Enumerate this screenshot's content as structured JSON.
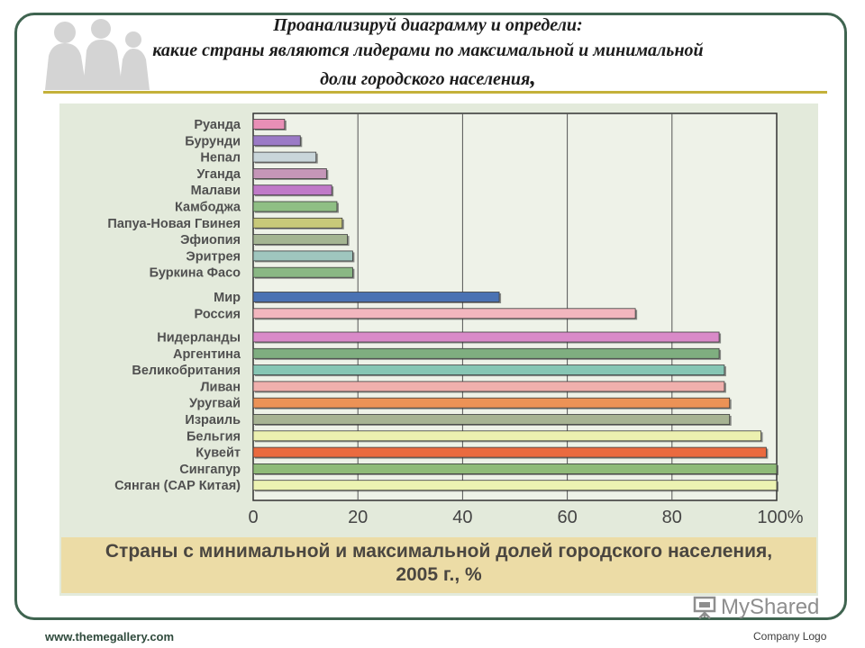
{
  "slide": {
    "title_line1": "Проанализируй диаграмму и определи:",
    "title_line2": "какие страны являются лидерами по максимальной и минимальной",
    "title_line3": "доли городского населения",
    "title_comma": ",",
    "footer_url": "www.themegallery.com",
    "company_logo": "Company Logo",
    "watermark": "MyShared"
  },
  "chart_data": {
    "type": "bar",
    "orientation": "horizontal",
    "title": "Страны с минимальной и максимальной долей городского населения, 2005 г., %",
    "caption_line1": "Страны с минимальной и максимальной долей городского населения,",
    "caption_line2": "2005 г., %",
    "xlim": [
      0,
      100
    ],
    "ticks": [
      "0",
      "20",
      "40",
      "60",
      "80",
      "100%"
    ],
    "tick_values": [
      0,
      20,
      40,
      60,
      80,
      100
    ],
    "grid": true,
    "bars": [
      {
        "label": "Руанда",
        "value": 6,
        "color": "#e88fb6",
        "group": 0
      },
      {
        "label": "Бурунди",
        "value": 9,
        "color": "#9b7ac6",
        "group": 0
      },
      {
        "label": "Непал",
        "value": 12,
        "color": "#c9d6da",
        "group": 0
      },
      {
        "label": "Уганда",
        "value": 14,
        "color": "#c596b8",
        "group": 0
      },
      {
        "label": "Малави",
        "value": 15,
        "color": "#c07ac8",
        "group": 0
      },
      {
        "label": "Камбоджа",
        "value": 16,
        "color": "#8fbf84",
        "group": 0
      },
      {
        "label": "Папуа-Новая Гвинея",
        "value": 17,
        "color": "#c8c979",
        "group": 0
      },
      {
        "label": "Эфиопия",
        "value": 18,
        "color": "#a4b592",
        "group": 0
      },
      {
        "label": "Эритрея",
        "value": 19,
        "color": "#9fc6be",
        "group": 0
      },
      {
        "label": "Буркина Фасо",
        "value": 19,
        "color": "#8ab884",
        "group": 0
      },
      {
        "label": "Мир",
        "value": 47,
        "color": "#4a72b3",
        "group": 1
      },
      {
        "label": "Россия",
        "value": 73,
        "color": "#f2b6be",
        "group": 1
      },
      {
        "label": "Нидерланды",
        "value": 89,
        "color": "#d98ac8",
        "group": 2
      },
      {
        "label": "Аргентина",
        "value": 89,
        "color": "#7fae80",
        "group": 2
      },
      {
        "label": "Великобритания",
        "value": 90,
        "color": "#86c6b4",
        "group": 2
      },
      {
        "label": "Ливан",
        "value": 90,
        "color": "#f0b0ad",
        "group": 2
      },
      {
        "label": "Уругвай",
        "value": 91,
        "color": "#ec9256",
        "group": 2
      },
      {
        "label": "Израиль",
        "value": 91,
        "color": "#a7b393",
        "group": 2
      },
      {
        "label": "Бельгия",
        "value": 97,
        "color": "#ecf0b0",
        "group": 2
      },
      {
        "label": "Кувейт",
        "value": 98,
        "color": "#ea6a3f",
        "group": 2
      },
      {
        "label": "Сингапур",
        "value": 100,
        "color": "#8fbb78",
        "group": 2
      },
      {
        "label": "Сянган (САР Китая)",
        "value": 100,
        "color": "#ecf3b2",
        "group": 2
      }
    ]
  }
}
